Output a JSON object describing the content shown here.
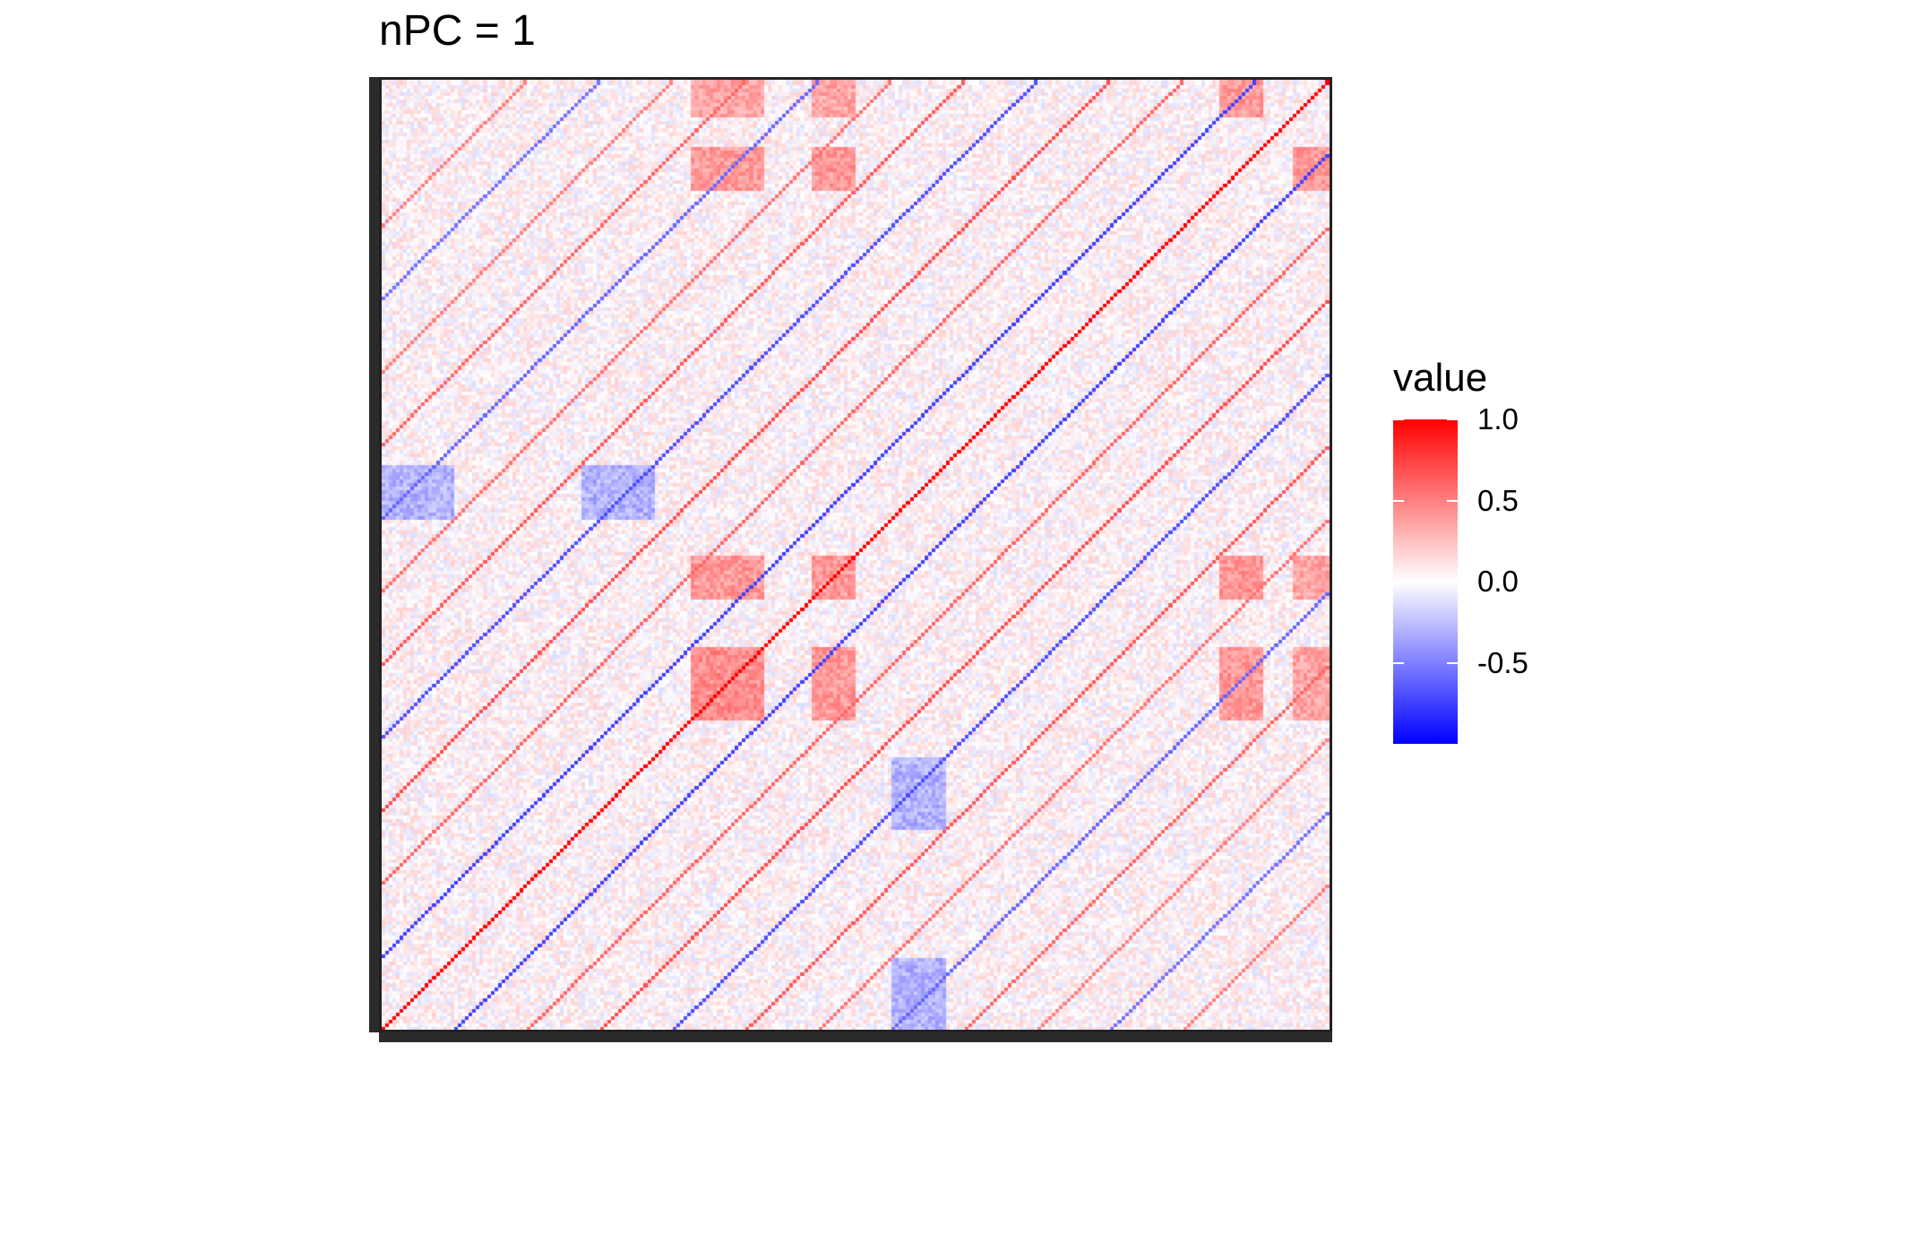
{
  "chart_data": {
    "type": "heatmap",
    "title": "nPC = 1",
    "xlabel": "",
    "ylabel": "",
    "x_tick_labels": [],
    "y_tick_labels": [],
    "n_rows": 260,
    "n_cols": 260,
    "value_range": [
      -1,
      1
    ],
    "color_scale": {
      "low": "#0000ff",
      "mid": "#ffffff",
      "high": "#ff0000"
    },
    "legend": {
      "title": "value",
      "position": "right",
      "ticks": [
        {
          "value": 1.0,
          "label": "1.0"
        },
        {
          "value": 0.5,
          "label": "0.5"
        },
        {
          "value": 0.0,
          "label": "0.0"
        },
        {
          "value": -0.5,
          "label": "-0.5"
        }
      ]
    },
    "main_diagonal_value": 1.0,
    "off_diagonals": [
      {
        "offset": 20,
        "value": -0.75
      },
      {
        "offset": -20,
        "value": -0.75
      },
      {
        "offset": 40,
        "value": 0.6
      },
      {
        "offset": -40,
        "value": 0.6
      },
      {
        "offset": 60,
        "value": 0.7
      },
      {
        "offset": -60,
        "value": 0.7
      },
      {
        "offset": 80,
        "value": -0.7
      },
      {
        "offset": -80,
        "value": -0.7
      },
      {
        "offset": 100,
        "value": 0.65
      },
      {
        "offset": -100,
        "value": 0.65
      },
      {
        "offset": 120,
        "value": 0.55
      },
      {
        "offset": -120,
        "value": 0.55
      },
      {
        "offset": 140,
        "value": -0.6
      },
      {
        "offset": -140,
        "value": -0.6
      },
      {
        "offset": 160,
        "value": 0.6
      },
      {
        "offset": -160,
        "value": 0.6
      },
      {
        "offset": 180,
        "value": 0.5
      },
      {
        "offset": -180,
        "value": 0.5
      },
      {
        "offset": 200,
        "value": -0.55
      },
      {
        "offset": -200,
        "value": -0.55
      },
      {
        "offset": 220,
        "value": 0.5
      },
      {
        "offset": -220,
        "value": 0.5
      }
    ],
    "blocks": [
      {
        "rows": [
          85,
          105
        ],
        "cols": [
          85,
          105
        ],
        "value": 0.45
      },
      {
        "rows": [
          118,
          130
        ],
        "cols": [
          118,
          130
        ],
        "value": 0.4
      },
      {
        "rows": [
          85,
          105
        ],
        "cols": [
          118,
          130
        ],
        "value": 0.4
      },
      {
        "rows": [
          118,
          130
        ],
        "cols": [
          85,
          105
        ],
        "value": 0.4
      },
      {
        "rows": [
          85,
          105
        ],
        "cols": [
          230,
          242
        ],
        "value": 0.4
      },
      {
        "rows": [
          230,
          242
        ],
        "cols": [
          85,
          105
        ],
        "value": 0.4
      },
      {
        "rows": [
          118,
          130
        ],
        "cols": [
          230,
          242
        ],
        "value": 0.4
      },
      {
        "rows": [
          230,
          242
        ],
        "cols": [
          118,
          130
        ],
        "value": 0.4
      },
      {
        "rows": [
          85,
          105
        ],
        "cols": [
          250,
          260
        ],
        "value": 0.35
      },
      {
        "rows": [
          250,
          260
        ],
        "cols": [
          85,
          105
        ],
        "value": 0.35
      },
      {
        "rows": [
          118,
          130
        ],
        "cols": [
          250,
          260
        ],
        "value": 0.35
      },
      {
        "rows": [
          250,
          260
        ],
        "cols": [
          118,
          130
        ],
        "value": 0.35
      },
      {
        "rows": [
          230,
          242
        ],
        "cols": [
          250,
          260
        ],
        "value": 0.4
      },
      {
        "rows": [
          250,
          260
        ],
        "cols": [
          230,
          242
        ],
        "value": 0.4
      },
      {
        "rows": [
          140,
          155
        ],
        "cols": [
          0,
          20
        ],
        "value": -0.3
      },
      {
        "rows": [
          0,
          20
        ],
        "cols": [
          140,
          155
        ],
        "value": -0.3
      },
      {
        "rows": [
          140,
          155
        ],
        "cols": [
          55,
          75
        ],
        "value": -0.3
      },
      {
        "rows": [
          55,
          75
        ],
        "cols": [
          140,
          155
        ],
        "value": -0.3
      }
    ]
  }
}
